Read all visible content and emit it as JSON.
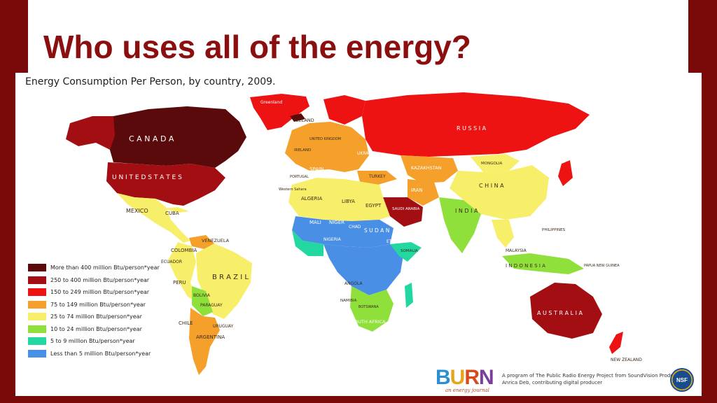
{
  "slide_title": "Who uses all of the energy?",
  "map": {
    "heading": "Energy Consumption Per Person, by country, 2009.",
    "colors": {
      "over400": "#5a0a0a",
      "250to400": "#a30e12",
      "150to249": "#ee1313",
      "75to149": "#f4a02a",
      "25to74": "#f7ee6a",
      "10to24": "#8fe03a",
      "5to9": "#22d8a0",
      "under5": "#4a8fe6",
      "ocean": "#ffffff"
    },
    "legend": [
      {
        "label": "More than 400 million Btu/person*year",
        "color": "#5a0a0a"
      },
      {
        "label": "250 to 400 million Btu/person*year",
        "color": "#a30e12"
      },
      {
        "label": "150 to 249 million Btu/person*year",
        "color": "#ee1313"
      },
      {
        "label": "75 to 149 million Btu/person*year",
        "color": "#f4a02a"
      },
      {
        "label": "25 to 74 million Btu/person*year",
        "color": "#f7ee6a"
      },
      {
        "label": "10 to 24 million Btu/person*year",
        "color": "#8fe03a"
      },
      {
        "label": "5 to 9 million Btu/person*year",
        "color": "#22d8a0"
      },
      {
        "label": "Less than 5 million Btu/person*year",
        "color": "#4a8fe6"
      }
    ],
    "labels": {
      "canada": "C A N A D A",
      "united_states": "U N I T E D   S T A T E S",
      "mexico": "MEXICO",
      "cuba": "CUBA",
      "venezuela": "VENEZUELA",
      "colombia": "COLOMBIA",
      "ecuador": "ECUADOR",
      "peru": "PERU",
      "brazil": "B R A Z I L",
      "bolivia": "BOLIVIA",
      "paraguay": "PARAGUAY",
      "chile": "CHILE",
      "uruguay": "URUGUAY",
      "argentina": "ARGENTINA",
      "iceland": "ICELAND",
      "greenland": "Greenland",
      "ireland": "IRELAND",
      "united_kingdom": "UNITED KINGDOM",
      "spain": "SPAIN",
      "portugal": "PORTUGAL",
      "ukraine": "UKRAINE",
      "turkey": "TURKEY",
      "russia": "R U S S I A",
      "kazakhstan": "KAZAKHSTAN",
      "mongolia": "MONGOLIA",
      "china": "C H I N A",
      "iran": "IRAN",
      "india": "I N D I A",
      "algeria": "ALGERIA",
      "libya": "LIBYA",
      "egypt": "EGYPT",
      "saudi_arabia": "SAUDI ARABIA",
      "western_sahara": "Western Sahara",
      "mali": "MALI",
      "niger": "NIGER",
      "chad": "CHAD",
      "sudan": "S U D A N",
      "nigeria": "NIGERIA",
      "ethiopia": "ETHIOPIA",
      "somalia": "SOMALIA",
      "angola": "ANGOLA",
      "namibia": "NAMIBIA",
      "botswana": "BOTSWANA",
      "south_africa": "SOUTH AFRICA",
      "philippines": "PHILIPPINES",
      "malaysia": "MALAYSIA",
      "indonesia": "I N D O N E S I A",
      "papua_new_guinea": "PAPUA NEW GUINEA",
      "australia": "A U S T R A L I A",
      "new_zealand": "NEW ZEALAND"
    }
  },
  "footer": {
    "logo": {
      "b": "B",
      "u": "U",
      "r": "R",
      "n": "N"
    },
    "tagline": "an energy journal",
    "credit_line1": "A program of The Public Radio Energy Project from SoundVision Productions",
    "credit_line2": "Anrica Deb, contributing digital producer",
    "seal_text": "NSF"
  }
}
